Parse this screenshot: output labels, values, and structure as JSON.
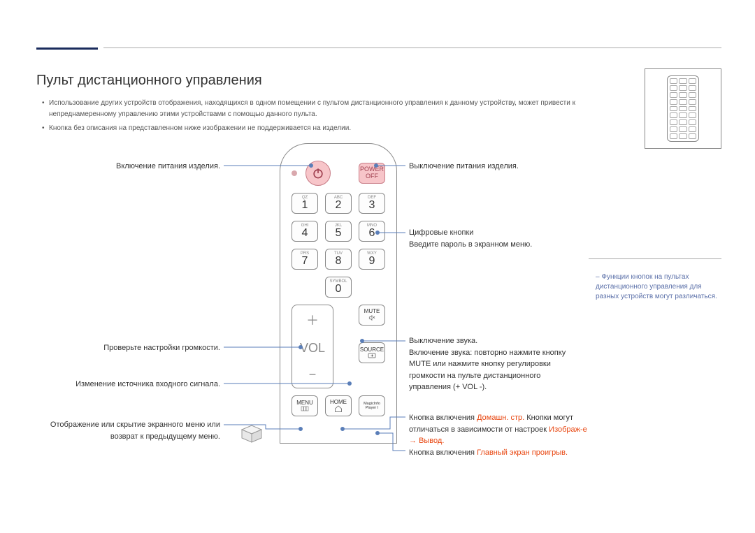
{
  "title": "Пульт дистанционного управления",
  "bullets": [
    "Использование других устройств отображения, находящихся в одном помещении с пультом дистанционного управления к данному устройству, может привести к непреднамеренному управлению этими устройствами с помощью данного пульта.",
    "Кнопка без описания на представленном ниже изображении не поддерживается на изделии."
  ],
  "sidebar_note": "Функции кнопок на пультах дистанционного управления для разных устройств могут различаться.",
  "left_labels": {
    "power_on": "Включение питания изделия.",
    "volume": "Проверьте настройки громкости.",
    "source": "Изменение источника входного сигнала.",
    "menu": "Отображение или скрытие экранного меню или возврат к предыдущему меню."
  },
  "right_labels": {
    "power_off": "Выключение питания изделия.",
    "digits_1": "Цифровые кнопки",
    "digits_2": "Введите пароль в экранном меню.",
    "mute_1": "Выключение звука.",
    "mute_2": "Включение звука: повторно нажмите кнопку MUTE или нажмите кнопку регулировки громкости на пульте дистанционного управления (+ VOL -).",
    "home_1a": "Кнопка включения ",
    "home_1b": "Домашн. стр. ",
    "home_1c": "Кнопки могут отличаться в зависимости от настроек ",
    "home_1d": "Изображ-е",
    "home_1e": " → ",
    "home_1f": "Вывод.",
    "home_2a": "Кнопка включения ",
    "home_2b": "Главный экран проигрыв. "
  },
  "remote": {
    "power_off_label": "POWER OFF",
    "vol_label": "VOL",
    "mute_label": "MUTE",
    "source_label": "SOURCE",
    "menu_label": "MENU",
    "home_label": "HOME",
    "magic_label": "MagicInfo Player I",
    "symbol_label": "SYMBOL",
    "keys": [
      {
        "sub": "QZ",
        "n": "1"
      },
      {
        "sub": "ABC",
        "n": "2"
      },
      {
        "sub": "DEF",
        "n": "3"
      },
      {
        "sub": "GHI",
        "n": "4"
      },
      {
        "sub": "JKL",
        "n": "5"
      },
      {
        "sub": "MNO",
        "n": "6"
      },
      {
        "sub": "PRS",
        "n": "7"
      },
      {
        "sub": "TUV",
        "n": "8"
      },
      {
        "sub": "WXY",
        "n": "9"
      }
    ],
    "zero": {
      "sub": "SYMBOL",
      "n": "0"
    }
  },
  "colors": {
    "accent": "#1a2b5c",
    "leader": "#5a7eb8",
    "red": "#e84610",
    "pink_fill": "#f7c5c9",
    "pink_stroke": "#c97e88"
  }
}
